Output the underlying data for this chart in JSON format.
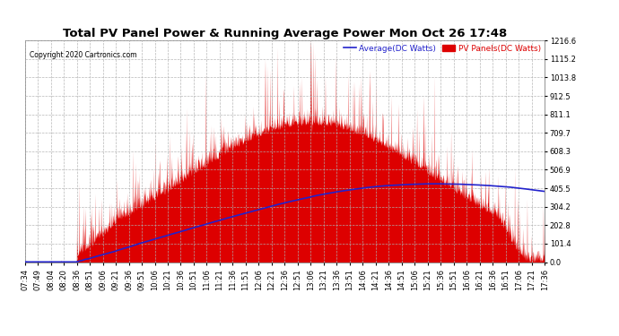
{
  "title": "Total PV Panel Power & Running Average Power Mon Oct 26 17:48",
  "copyright": "Copyright 2020 Cartronics.com",
  "legend_avg": "Average(DC Watts)",
  "legend_pv": "PV Panels(DC Watts)",
  "yticks": [
    0.0,
    101.4,
    202.8,
    304.2,
    405.5,
    506.9,
    608.3,
    709.7,
    811.1,
    912.5,
    1013.8,
    1115.2,
    1216.6
  ],
  "ymax": 1216.6,
  "ymin": 0.0,
  "background_color": "#ffffff",
  "grid_color": "#b0b0b0",
  "fill_color": "#dd0000",
  "avg_line_color": "#2222cc",
  "title_fontsize": 9.5,
  "tick_fontsize": 6,
  "label_fontsize": 7,
  "xtick_labels": [
    "07:34",
    "07:49",
    "08:04",
    "08:20",
    "08:36",
    "08:51",
    "09:06",
    "09:21",
    "09:36",
    "09:51",
    "10:06",
    "10:21",
    "10:36",
    "10:51",
    "11:06",
    "11:21",
    "11:36",
    "11:51",
    "12:06",
    "12:21",
    "12:36",
    "12:51",
    "13:06",
    "13:21",
    "13:36",
    "13:51",
    "14:06",
    "14:21",
    "14:36",
    "14:51",
    "15:06",
    "15:21",
    "15:36",
    "15:51",
    "16:06",
    "16:21",
    "16:36",
    "16:51",
    "17:06",
    "17:21",
    "17:36"
  ]
}
